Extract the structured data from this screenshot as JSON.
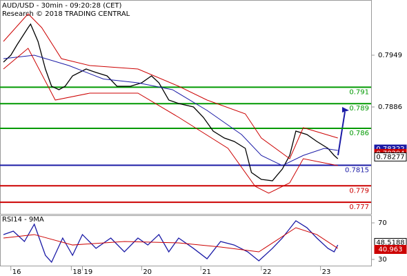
{
  "chart_data": [
    {
      "type": "line",
      "title": "AUD/USD - 30min - 09:20:28 (CET)",
      "subtitle": "Research © 2018 TRADING CENTRAL",
      "xlim": [
        0,
        298
      ],
      "ylim": [
        0.77558,
        0.80162
      ],
      "yticks": [
        0.7949,
        0.7886
      ],
      "series": [
        {
          "color": "#000000",
          "x": [
            0,
            6,
            11,
            20,
            22,
            28,
            34,
            39,
            45,
            50,
            56,
            67,
            75,
            84,
            92,
            103,
            112,
            120,
            126,
            134,
            142,
            154,
            162,
            170,
            179,
            187,
            196,
            201,
            209,
            218,
            226,
            232,
            237,
            246,
            254,
            263,
            268,
            271
          ],
          "values": [
            0.79406,
            0.7949,
            0.79616,
            0.79826,
            0.79868,
            0.79658,
            0.79322,
            0.79112,
            0.7907,
            0.79112,
            0.79238,
            0.79322,
            0.7928,
            0.79238,
            0.79112,
            0.79112,
            0.79154,
            0.79238,
            0.79154,
            0.78944,
            0.78902,
            0.7886,
            0.78734,
            0.78566,
            0.78482,
            0.7844,
            0.78356,
            0.78062,
            0.77978,
            0.77961,
            0.78104,
            0.7827,
            0.78566,
            0.78524,
            0.7844,
            0.78356,
            0.7827,
            0.7823
          ]
        },
        {
          "color": "#1a1aa6",
          "x": [
            0,
            25,
            53,
            81,
            109,
            137,
            165,
            193,
            209,
            226,
            243,
            260,
            271
          ],
          "values": [
            0.79448,
            0.7949,
            0.79364,
            0.792,
            0.79154,
            0.7907,
            0.78818,
            0.78524,
            0.7827,
            0.78146,
            0.7827,
            0.78356,
            0.78331
          ]
        },
        {
          "color": "#cc0000",
          "x": [
            0,
            20,
            31,
            47,
            70,
            109,
            142,
            165,
            196,
            209,
            232,
            243,
            271
          ],
          "values": [
            0.79658,
            0.79994,
            0.79826,
            0.79448,
            0.79364,
            0.79322,
            0.79112,
            0.78944,
            0.78776,
            0.78482,
            0.7823,
            0.78608,
            0.78482
          ]
        },
        {
          "color": "#cc0000",
          "x": [
            0,
            20,
            42,
            70,
            109,
            142,
            182,
            204,
            215,
            232,
            243,
            271
          ],
          "values": [
            0.79322,
            0.79574,
            0.78944,
            0.79028,
            0.79028,
            0.78734,
            0.78356,
            0.77894,
            0.7781,
            0.77936,
            0.7823,
            0.78146
          ]
        }
      ],
      "levels": [
        {
          "value": 0.791,
          "color": "#009900"
        },
        {
          "value": 0.789,
          "color": "#009900"
        },
        {
          "value": 0.786,
          "color": "#009900"
        },
        {
          "value": 0.7815,
          "color": "#1a1aa6"
        },
        {
          "value": 0.779,
          "color": "#cc0000"
        },
        {
          "value": 0.777,
          "color": "#cc0000"
        }
      ],
      "price_tags": [
        {
          "value": 0.78322,
          "color": "#1a1aa6"
        },
        {
          "value": 0.78294,
          "color": "#cc0000"
        },
        {
          "value": 0.78277,
          "color": "#ffffff"
        }
      ]
    },
    {
      "type": "line",
      "title": "RSI14 - 9MA",
      "xlim": [
        0,
        298
      ],
      "ylim": [
        23.2,
        78.3
      ],
      "yticks": [
        70,
        30
      ],
      "xticks": [
        {
          "value": 6,
          "label": "16"
        },
        {
          "value": 55,
          "label": "18"
        },
        {
          "value": 64,
          "label": "19"
        },
        {
          "value": 112,
          "label": "20"
        },
        {
          "value": 160,
          "label": "21"
        },
        {
          "value": 209,
          "label": "22"
        },
        {
          "value": 257,
          "label": "23"
        }
      ],
      "series": [
        {
          "color": "#1a1aa6",
          "x": [
            0,
            8,
            17,
            25,
            34,
            39,
            48,
            56,
            64,
            75,
            87,
            98,
            109,
            117,
            126,
            134,
            142,
            154,
            165,
            176,
            187,
            198,
            207,
            218,
            226,
            237,
            246,
            254,
            263,
            268,
            271
          ],
          "values": [
            57.2,
            60.9,
            49.6,
            68.5,
            34.5,
            27,
            53.4,
            34.5,
            57.2,
            42.1,
            53.4,
            38.3,
            53.4,
            45.8,
            57.2,
            38.3,
            53.4,
            42.1,
            30.7,
            49.6,
            45.8,
            38.3,
            28.5,
            42.1,
            53.4,
            72.3,
            64.7,
            53.4,
            42.1,
            38.3,
            45.8
          ]
        },
        {
          "color": "#cc0000",
          "x": [
            0,
            25,
            56,
            98,
            142,
            176,
            207,
            237,
            254,
            271
          ],
          "values": [
            53.4,
            57.2,
            45.8,
            49.6,
            48.1,
            43.6,
            38.3,
            64.7,
            57.2,
            42.1
          ]
        }
      ],
      "price_tags": [
        {
          "value": 48.5188,
          "color": "#ffffff"
        },
        {
          "value": 40.963,
          "color": "#cc0000"
        }
      ]
    }
  ]
}
